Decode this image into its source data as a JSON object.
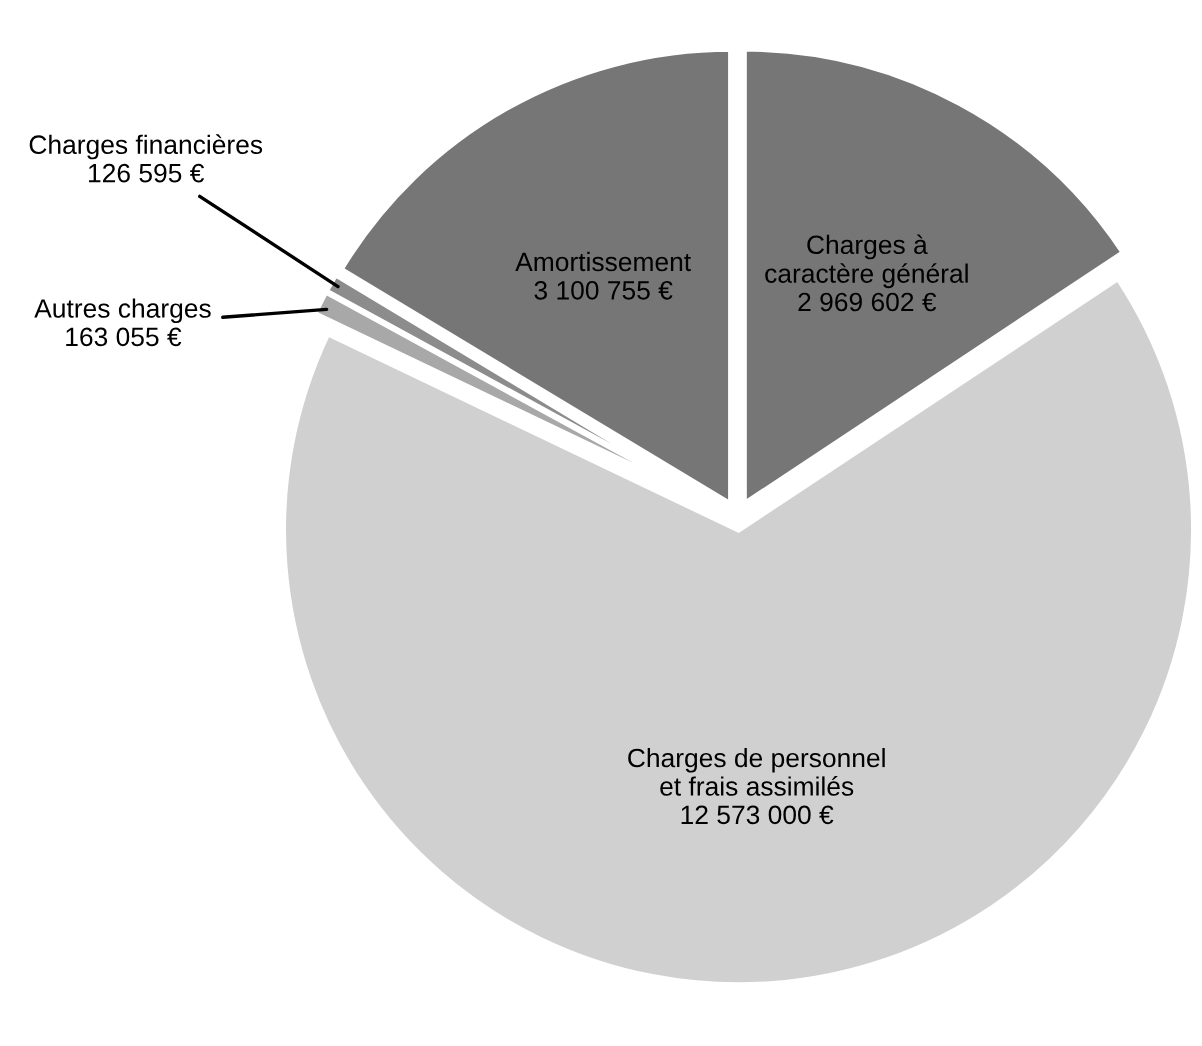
{
  "chart_data": {
    "type": "pie",
    "categories": [
      "Charges à caractère général",
      "Charges de personnel et frais assimilés",
      "Autres charges",
      "Charges financières",
      "Amortissement"
    ],
    "values": [
      2969602,
      12573000,
      163055,
      126595,
      3100755
    ],
    "value_labels": [
      "2 969 602 €",
      "12 573 000 €",
      "163 055 €",
      "126 595 €",
      "3 100 755 €"
    ],
    "colors": [
      "#767676",
      "#d0d0d0",
      "#a8a8a8",
      "#8c8c8c",
      "#767676"
    ]
  }
}
